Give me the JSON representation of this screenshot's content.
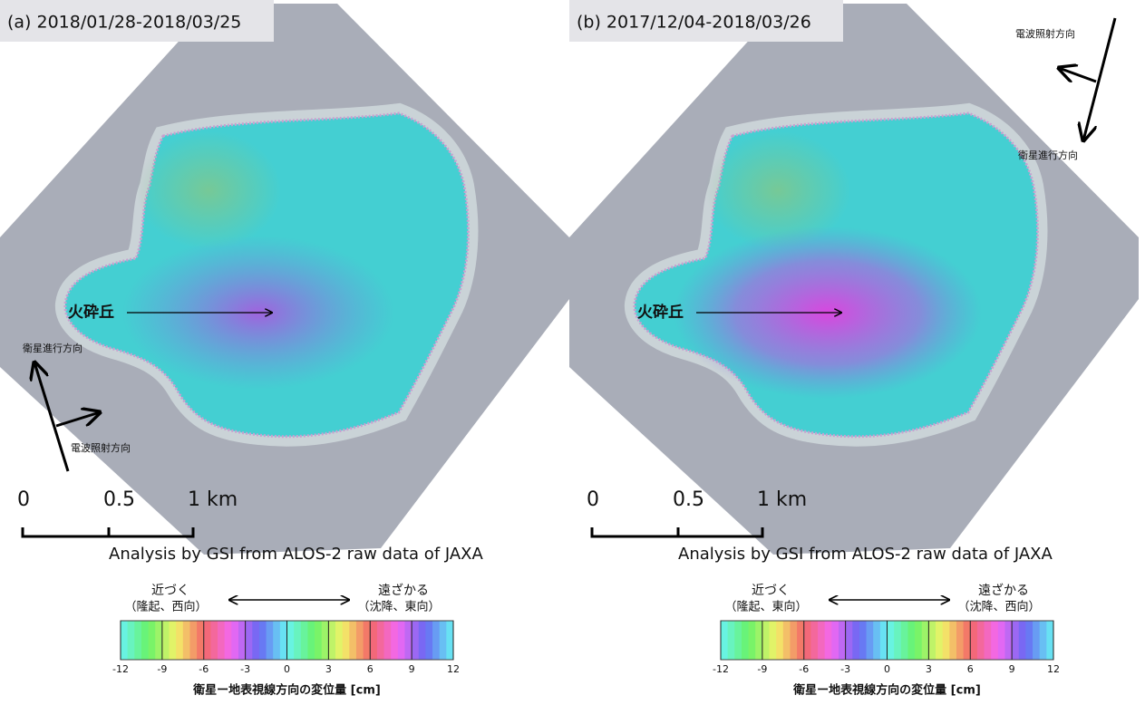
{
  "panels": [
    {
      "title": "(a) 2018/01/28-2018/03/25",
      "feature": "火砕丘",
      "flight_direction": "衛星進行方向",
      "look_direction": "電波照射方向",
      "scale_labels": [
        "0",
        "0.5",
        "1 km"
      ],
      "credit": "Analysis by GSI from ALOS-2 raw data of JAXA",
      "colorbar": {
        "near": "近づく",
        "near_note": "（隆起、西向）",
        "far": "遠ざかる",
        "far_note": "（沈降、東向）",
        "ticks": [
          -12,
          -9,
          -6,
          -3,
          0,
          3,
          6,
          9,
          12
        ],
        "caption": "衛星ー地表視線方向の変位量 [cm]"
      }
    },
    {
      "title": "(b) 2017/12/04-2018/03/26",
      "feature": "火砕丘",
      "flight_direction": "衛星進行方向",
      "look_direction": "電波照射方向",
      "scale_labels": [
        "0",
        "0.5",
        "1 km"
      ],
      "credit": "Analysis by GSI from ALOS-2 raw data of JAXA",
      "colorbar": {
        "near": "近づく",
        "near_note": "（隆起、東向）",
        "far": "遠ざかる",
        "far_note": "（沈降、西向）",
        "ticks": [
          -12,
          -9,
          -6,
          -3,
          0,
          3,
          6,
          9,
          12
        ],
        "caption": "衛星ー地表視線方向の変位量 [cm]"
      }
    }
  ]
}
